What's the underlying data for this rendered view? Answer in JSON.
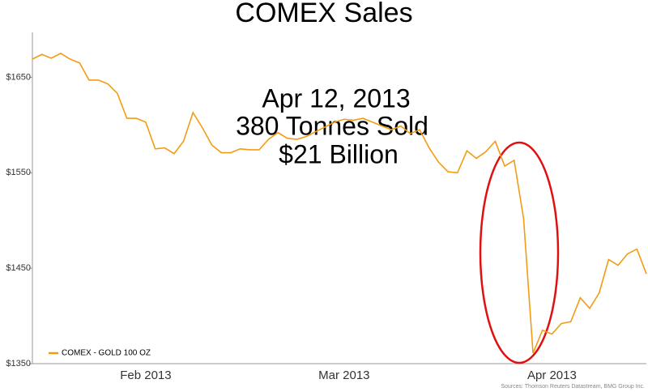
{
  "chart_data": {
    "type": "line",
    "title": "COMEX Sales",
    "annotation": [
      "Apr 12, 2013",
      "380 Tonnes Sold",
      "$21 Billion"
    ],
    "source": "Sources: Thomson Reuters Datastream, BMG Group Inc.",
    "categories": [
      null,
      null,
      null,
      null,
      null,
      null,
      null,
      null,
      null,
      null,
      null,
      null,
      "Feb 2013",
      null,
      null,
      null,
      null,
      null,
      null,
      null,
      null,
      null,
      null,
      null,
      null,
      null,
      null,
      null,
      null,
      null,
      null,
      null,
      null,
      "Mar 2013",
      null,
      null,
      null,
      null,
      null,
      null,
      null,
      null,
      null,
      null,
      null,
      null,
      null,
      null,
      null,
      null,
      null,
      null,
      null,
      null,
      null,
      "Apr 2013",
      null,
      null,
      null,
      null,
      null,
      null,
      null,
      null,
      null,
      null
    ],
    "series": [
      {
        "name": "COMEX - GOLD 100 OZ",
        "color": "#f39c12",
        "values": [
          1669,
          1674,
          1670,
          1675,
          1669,
          1665,
          1647,
          1647,
          1643,
          1633,
          1607,
          1607,
          1603,
          1575,
          1576,
          1570,
          1583,
          1613,
          1597,
          1579,
          1571,
          1571,
          1575,
          1574,
          1574,
          1585,
          1592,
          1586,
          1585,
          1588,
          1593,
          1598,
          1603,
          1606,
          1605,
          1607,
          1603,
          1599,
          1595,
          1599,
          1591,
          1595,
          1576,
          1561,
          1551,
          1550,
          1573,
          1565,
          1572,
          1583,
          1557,
          1563,
          1502,
          1361,
          1385,
          1381,
          1392,
          1394,
          1419,
          1408,
          1424,
          1459,
          1453,
          1465,
          1470,
          1444
        ]
      }
    ],
    "ylim": [
      1350,
      1697
    ],
    "yticks": [
      {
        "value": 1350,
        "label": "$1350"
      },
      {
        "value": 1450,
        "label": "$1450"
      },
      {
        "value": 1550,
        "label": "$1550"
      },
      {
        "value": 1650,
        "label": "$1650"
      }
    ]
  }
}
